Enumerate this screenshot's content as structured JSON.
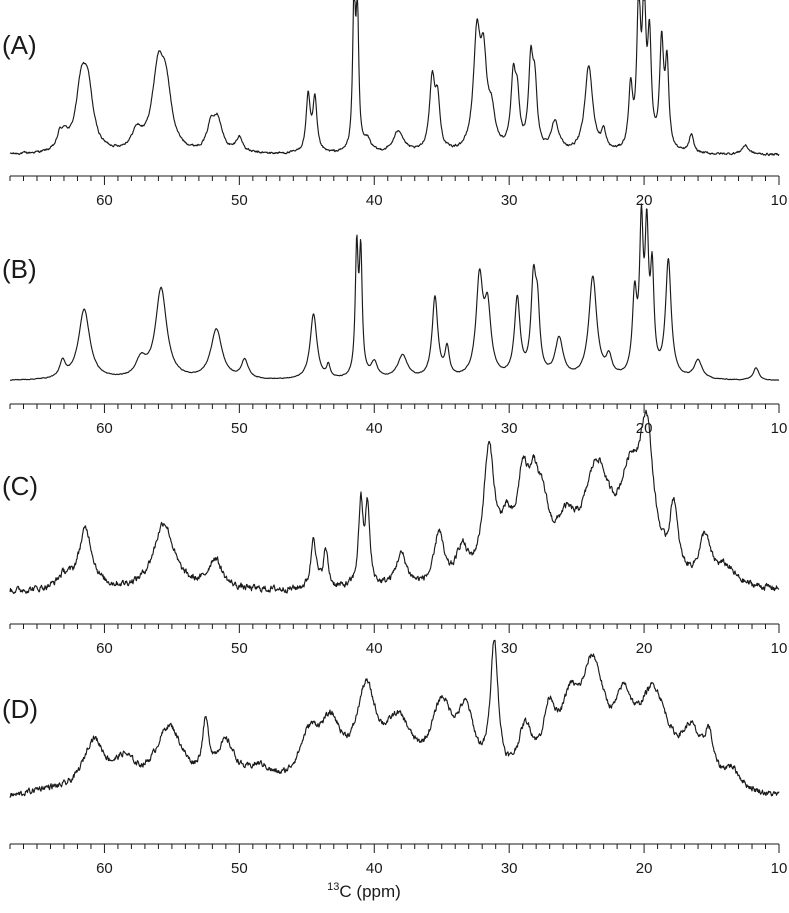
{
  "chart_data": {
    "type": "line",
    "title": "",
    "xlabel_sup": "13",
    "xlabel_main": "C (ppm)",
    "xlim": [
      67,
      10
    ],
    "x_reversed": true,
    "major_ticks": [
      60,
      50,
      40,
      30,
      20,
      10
    ],
    "major_tick_labels": [
      "60",
      "50",
      "40",
      "30",
      "20",
      "10"
    ],
    "minor_tick_step": 1,
    "panels": [
      {
        "label": "(A)",
        "noise": 0.012,
        "baseline": 0.02,
        "peaks": [
          [
            63.3,
            0.1,
            0.25
          ],
          [
            62.9,
            0.08,
            0.25
          ],
          [
            61.7,
            0.43,
            0.5
          ],
          [
            61.2,
            0.33,
            0.45
          ],
          [
            57.6,
            0.12,
            0.45
          ],
          [
            56.0,
            0.55,
            0.55
          ],
          [
            55.4,
            0.32,
            0.45
          ],
          [
            52.1,
            0.16,
            0.35
          ],
          [
            51.6,
            0.2,
            0.4
          ],
          [
            50.0,
            0.1,
            0.3
          ],
          [
            44.9,
            0.38,
            0.18
          ],
          [
            44.4,
            0.35,
            0.18
          ],
          [
            41.5,
            0.98,
            0.12
          ],
          [
            41.25,
            0.9,
            0.12
          ],
          [
            40.5,
            0.08,
            0.3
          ],
          [
            38.2,
            0.15,
            0.45
          ],
          [
            35.7,
            0.48,
            0.25
          ],
          [
            35.3,
            0.3,
            0.2
          ],
          [
            32.4,
            0.72,
            0.3
          ],
          [
            31.9,
            0.55,
            0.3
          ],
          [
            31.3,
            0.22,
            0.3
          ],
          [
            29.7,
            0.45,
            0.22
          ],
          [
            29.4,
            0.3,
            0.2
          ],
          [
            28.4,
            0.55,
            0.2
          ],
          [
            28.1,
            0.4,
            0.2
          ],
          [
            26.6,
            0.2,
            0.35
          ],
          [
            24.1,
            0.58,
            0.35
          ],
          [
            23.0,
            0.12,
            0.2
          ],
          [
            21.0,
            0.4,
            0.18
          ],
          [
            20.4,
            0.96,
            0.16
          ],
          [
            20.0,
            0.92,
            0.16
          ],
          [
            19.6,
            0.7,
            0.16
          ],
          [
            18.7,
            0.7,
            0.18
          ],
          [
            18.3,
            0.55,
            0.16
          ],
          [
            16.5,
            0.12,
            0.2
          ],
          [
            12.5,
            0.06,
            0.3
          ]
        ]
      },
      {
        "label": "(B)",
        "noise": 0.004,
        "baseline": 0.02,
        "peaks": [
          [
            63.1,
            0.1,
            0.25
          ],
          [
            61.5,
            0.45,
            0.5
          ],
          [
            57.3,
            0.11,
            0.45
          ],
          [
            55.8,
            0.58,
            0.5
          ],
          [
            51.7,
            0.32,
            0.5
          ],
          [
            49.6,
            0.12,
            0.3
          ],
          [
            44.5,
            0.42,
            0.3
          ],
          [
            43.4,
            0.08,
            0.15
          ],
          [
            41.3,
            0.8,
            0.13
          ],
          [
            41.0,
            0.76,
            0.13
          ],
          [
            40.0,
            0.1,
            0.3
          ],
          [
            37.9,
            0.15,
            0.45
          ],
          [
            35.5,
            0.52,
            0.25
          ],
          [
            34.6,
            0.18,
            0.2
          ],
          [
            32.2,
            0.62,
            0.3
          ],
          [
            31.6,
            0.42,
            0.3
          ],
          [
            29.4,
            0.5,
            0.25
          ],
          [
            28.2,
            0.58,
            0.22
          ],
          [
            27.9,
            0.38,
            0.2
          ],
          [
            26.3,
            0.25,
            0.35
          ],
          [
            23.8,
            0.65,
            0.35
          ],
          [
            22.6,
            0.12,
            0.25
          ],
          [
            20.7,
            0.5,
            0.2
          ],
          [
            20.2,
            0.9,
            0.16
          ],
          [
            19.8,
            0.85,
            0.16
          ],
          [
            19.4,
            0.62,
            0.16
          ],
          [
            18.2,
            0.75,
            0.25
          ],
          [
            16.0,
            0.12,
            0.35
          ],
          [
            11.7,
            0.08,
            0.25
          ]
        ]
      },
      {
        "label": "(C)",
        "noise": 0.035,
        "baseline": 0.04,
        "peaks": [
          [
            63.0,
            0.08,
            0.6
          ],
          [
            61.4,
            0.4,
            0.6
          ],
          [
            55.6,
            0.45,
            0.9
          ],
          [
            51.8,
            0.2,
            0.6
          ],
          [
            44.5,
            0.35,
            0.22
          ],
          [
            43.6,
            0.25,
            0.22
          ],
          [
            41.0,
            0.55,
            0.2
          ],
          [
            40.5,
            0.52,
            0.2
          ],
          [
            38.0,
            0.22,
            0.5
          ],
          [
            35.2,
            0.35,
            0.4
          ],
          [
            33.5,
            0.22,
            0.5
          ],
          [
            31.5,
            0.85,
            0.5
          ],
          [
            30.2,
            0.3,
            0.6
          ],
          [
            29.0,
            0.55,
            0.5
          ],
          [
            28.2,
            0.45,
            0.5
          ],
          [
            27.5,
            0.35,
            0.6
          ],
          [
            25.8,
            0.3,
            0.9
          ],
          [
            23.5,
            0.72,
            1.2
          ],
          [
            21.0,
            0.6,
            1.0
          ],
          [
            19.8,
            0.85,
            0.6
          ],
          [
            17.8,
            0.45,
            0.35
          ],
          [
            15.5,
            0.3,
            0.5
          ],
          [
            14.0,
            0.12,
            0.9
          ]
        ]
      },
      {
        "label": "(D)",
        "noise": 0.035,
        "baseline": 0.05,
        "peaks": [
          [
            64.5,
            0.05,
            1.5
          ],
          [
            60.8,
            0.38,
            1.0
          ],
          [
            58.5,
            0.2,
            1.0
          ],
          [
            55.2,
            0.48,
            1.3
          ],
          [
            52.5,
            0.38,
            0.3
          ],
          [
            51.0,
            0.32,
            0.9
          ],
          [
            48.5,
            0.15,
            1.2
          ],
          [
            44.8,
            0.35,
            1.0
          ],
          [
            43.2,
            0.4,
            1.0
          ],
          [
            40.6,
            0.65,
            0.9
          ],
          [
            38.2,
            0.45,
            1.3
          ],
          [
            35.0,
            0.55,
            1.0
          ],
          [
            33.2,
            0.48,
            0.8
          ],
          [
            31.1,
            0.98,
            0.35
          ],
          [
            28.8,
            0.38,
            0.7
          ],
          [
            27.0,
            0.45,
            0.6
          ],
          [
            25.5,
            0.45,
            0.8
          ],
          [
            23.8,
            0.82,
            1.1
          ],
          [
            21.5,
            0.45,
            0.8
          ],
          [
            19.3,
            0.68,
            1.4
          ],
          [
            16.5,
            0.35,
            0.9
          ],
          [
            15.2,
            0.3,
            0.4
          ],
          [
            13.5,
            0.15,
            0.8
          ]
        ]
      }
    ]
  }
}
